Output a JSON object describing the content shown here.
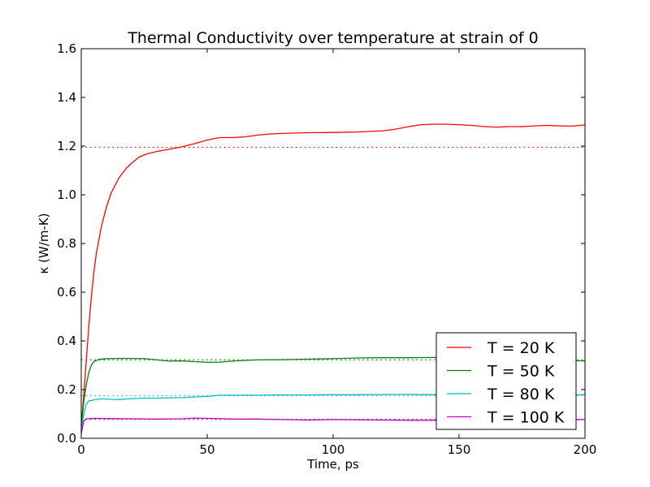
{
  "chart_data": {
    "type": "line",
    "title": "Thermal Conductivity over temperature at strain of 0",
    "xlabel": "Time, ps",
    "ylabel": "κ (W/m-K)",
    "xlim": [
      0,
      200
    ],
    "ylim": [
      0,
      1.6
    ],
    "xticks": [
      0,
      50,
      100,
      150,
      200
    ],
    "xtick_labels": [
      "0",
      "50",
      "100",
      "150",
      "200"
    ],
    "yticks": [
      0,
      0.2,
      0.4,
      0.6,
      0.8,
      1.0,
      1.2,
      1.4,
      1.6
    ],
    "ytick_labels": [
      "0.0",
      "0.2",
      "0.4",
      "0.6",
      "0.8",
      "1.0",
      "1.2",
      "1.4",
      "1.6"
    ],
    "grid": false,
    "legend_position": "lower-right",
    "series": [
      {
        "name": "T = 20 K",
        "color": "#ff0000",
        "reference_line": 1.195,
        "points": [
          [
            0,
            0.05
          ],
          [
            1,
            0.18
          ],
          [
            2,
            0.32
          ],
          [
            3,
            0.46
          ],
          [
            4,
            0.58
          ],
          [
            5,
            0.68
          ],
          [
            6,
            0.76
          ],
          [
            8,
            0.87
          ],
          [
            10,
            0.95
          ],
          [
            12,
            1.01
          ],
          [
            15,
            1.07
          ],
          [
            18,
            1.11
          ],
          [
            20,
            1.13
          ],
          [
            23,
            1.155
          ],
          [
            26,
            1.168
          ],
          [
            30,
            1.178
          ],
          [
            35,
            1.187
          ],
          [
            40,
            1.197
          ],
          [
            45,
            1.21
          ],
          [
            50,
            1.225
          ],
          [
            55,
            1.235
          ],
          [
            60,
            1.235
          ],
          [
            65,
            1.238
          ],
          [
            70,
            1.245
          ],
          [
            75,
            1.25
          ],
          [
            80,
            1.252
          ],
          [
            90,
            1.255
          ],
          [
            100,
            1.256
          ],
          [
            110,
            1.258
          ],
          [
            120,
            1.263
          ],
          [
            125,
            1.27
          ],
          [
            130,
            1.28
          ],
          [
            135,
            1.288
          ],
          [
            140,
            1.29
          ],
          [
            145,
            1.29
          ],
          [
            150,
            1.288
          ],
          [
            155,
            1.285
          ],
          [
            160,
            1.28
          ],
          [
            165,
            1.278
          ],
          [
            170,
            1.28
          ],
          [
            175,
            1.28
          ],
          [
            180,
            1.283
          ],
          [
            185,
            1.285
          ],
          [
            190,
            1.283
          ],
          [
            195,
            1.282
          ],
          [
            200,
            1.287
          ]
        ]
      },
      {
        "name": "T = 50 K",
        "color": "#008000",
        "reference_line": 0.322,
        "points": [
          [
            0,
            0.05
          ],
          [
            1,
            0.15
          ],
          [
            2,
            0.22
          ],
          [
            3,
            0.27
          ],
          [
            4,
            0.3
          ],
          [
            5,
            0.315
          ],
          [
            7,
            0.324
          ],
          [
            10,
            0.327
          ],
          [
            15,
            0.328
          ],
          [
            20,
            0.328
          ],
          [
            25,
            0.327
          ],
          [
            30,
            0.322
          ],
          [
            35,
            0.317
          ],
          [
            40,
            0.318
          ],
          [
            45,
            0.315
          ],
          [
            50,
            0.312
          ],
          [
            55,
            0.313
          ],
          [
            60,
            0.317
          ],
          [
            65,
            0.32
          ],
          [
            70,
            0.322
          ],
          [
            80,
            0.323
          ],
          [
            90,
            0.325
          ],
          [
            100,
            0.327
          ],
          [
            110,
            0.33
          ],
          [
            120,
            0.331
          ],
          [
            130,
            0.331
          ],
          [
            140,
            0.332
          ],
          [
            150,
            0.33
          ],
          [
            160,
            0.33
          ],
          [
            170,
            0.328
          ],
          [
            180,
            0.322
          ],
          [
            190,
            0.32
          ],
          [
            200,
            0.318
          ]
        ]
      },
      {
        "name": "T = 80 K",
        "color": "#00bfbf",
        "reference_line": 0.175,
        "points": [
          [
            0,
            0.03
          ],
          [
            1,
            0.1
          ],
          [
            2,
            0.14
          ],
          [
            3,
            0.153
          ],
          [
            5,
            0.158
          ],
          [
            8,
            0.162
          ],
          [
            12,
            0.16
          ],
          [
            15,
            0.159
          ],
          [
            20,
            0.163
          ],
          [
            25,
            0.165
          ],
          [
            30,
            0.165
          ],
          [
            40,
            0.167
          ],
          [
            50,
            0.172
          ],
          [
            55,
            0.177
          ],
          [
            60,
            0.177
          ],
          [
            70,
            0.177
          ],
          [
            80,
            0.178
          ],
          [
            90,
            0.178
          ],
          [
            100,
            0.179
          ],
          [
            110,
            0.179
          ],
          [
            120,
            0.18
          ],
          [
            130,
            0.18
          ],
          [
            140,
            0.179
          ],
          [
            150,
            0.179
          ],
          [
            160,
            0.178
          ],
          [
            170,
            0.177
          ],
          [
            180,
            0.177
          ],
          [
            190,
            0.178
          ],
          [
            200,
            0.179
          ]
        ]
      },
      {
        "name": "T = 100 K",
        "color": "#bf00bf",
        "reference_line": 0.078,
        "points": [
          [
            0,
            0.02
          ],
          [
            1,
            0.07
          ],
          [
            2,
            0.08
          ],
          [
            5,
            0.082
          ],
          [
            10,
            0.081
          ],
          [
            20,
            0.08
          ],
          [
            30,
            0.079
          ],
          [
            40,
            0.08
          ],
          [
            45,
            0.083
          ],
          [
            50,
            0.082
          ],
          [
            60,
            0.079
          ],
          [
            70,
            0.079
          ],
          [
            80,
            0.077
          ],
          [
            90,
            0.075
          ],
          [
            100,
            0.077
          ],
          [
            110,
            0.076
          ],
          [
            120,
            0.075
          ],
          [
            130,
            0.074
          ],
          [
            140,
            0.074
          ],
          [
            150,
            0.075
          ],
          [
            160,
            0.076
          ],
          [
            170,
            0.075
          ],
          [
            180,
            0.076
          ],
          [
            190,
            0.076
          ],
          [
            200,
            0.077
          ]
        ]
      }
    ]
  }
}
